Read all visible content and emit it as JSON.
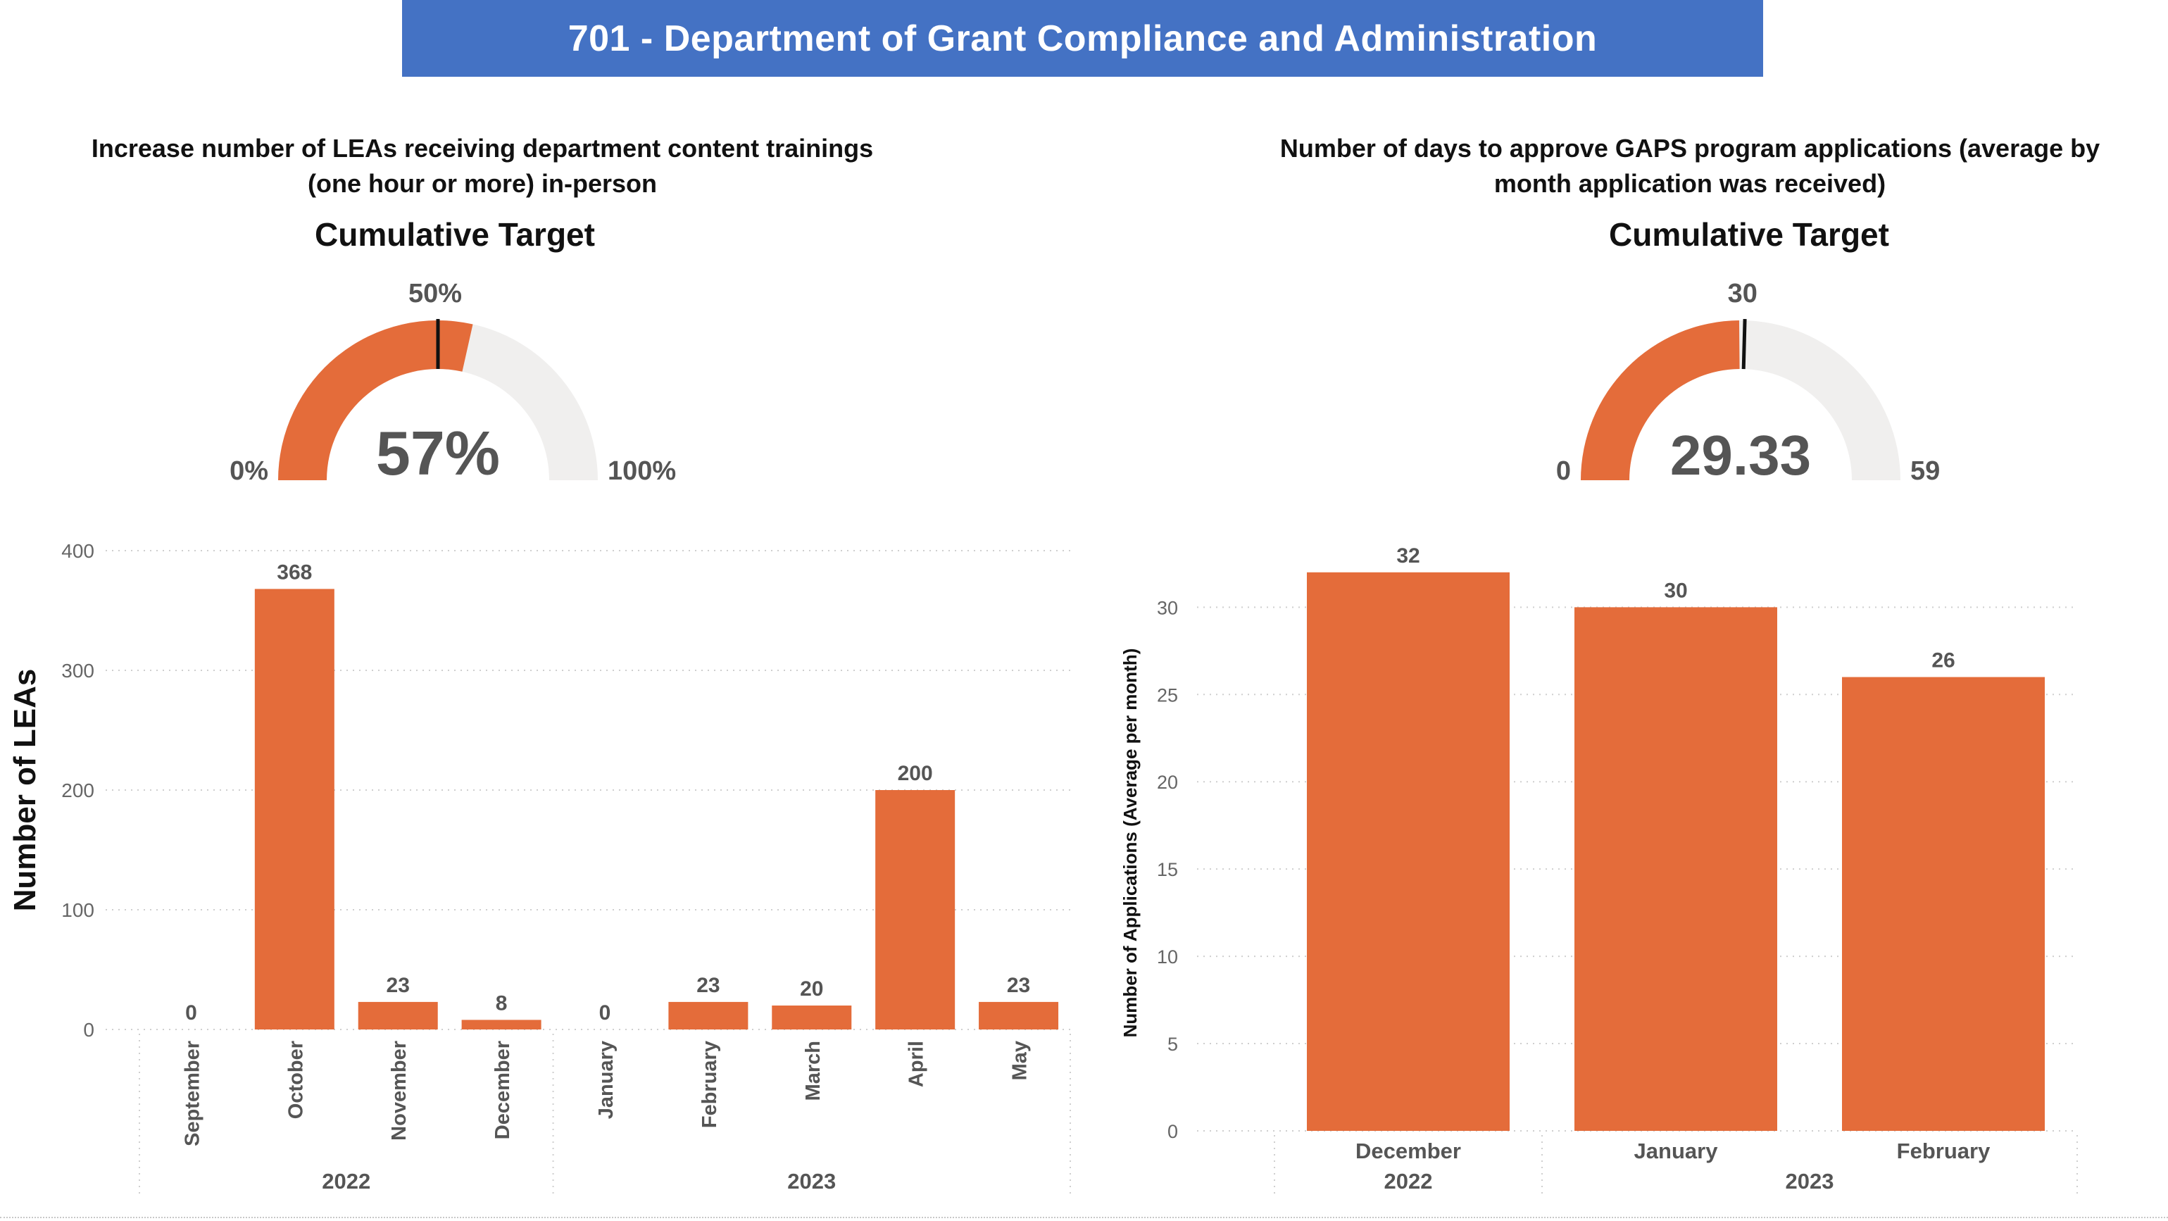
{
  "page": {
    "title": "701 - Department of Grant Compliance and Administration"
  },
  "left": {
    "subtitle": "Increase number of LEAs receiving department content trainings (one hour or more) in-person",
    "gauge_title": "Cumulative Target",
    "gauge": {
      "value_label": "57%",
      "target_label": "50%",
      "min_label": "0%",
      "max_label": "100%",
      "value": 57,
      "target": 50,
      "min": 0,
      "max": 100
    }
  },
  "right": {
    "subtitle": "Number of days to approve GAPS program applications (average by month application was received)",
    "gauge_title": "Cumulative Target",
    "gauge": {
      "value_label": "29.33",
      "target_label": "30",
      "min_label": "0",
      "max_label": "59",
      "value": 29.33,
      "target": 30,
      "min": 0,
      "max": 59
    }
  },
  "colors": {
    "banner": "#4472c4",
    "bar": "#e46c3a",
    "gauge_track": "#f0efee",
    "text_dark": "#555555"
  },
  "chart_data": [
    {
      "type": "bar",
      "ylabel": "Number of LEAs",
      "xlabel": "",
      "ylim": [
        0,
        400
      ],
      "yticks": [
        0,
        100,
        200,
        300,
        400
      ],
      "grid": true,
      "categories": [
        "September",
        "October",
        "November",
        "December",
        "January",
        "February",
        "March",
        "April",
        "May"
      ],
      "years": [
        "2022",
        "2022",
        "2022",
        "2022",
        "2023",
        "2023",
        "2023",
        "2023",
        "2023"
      ],
      "year_groups": [
        {
          "label": "2022",
          "count": 4
        },
        {
          "label": "2023",
          "count": 5
        }
      ],
      "values": [
        0,
        368,
        23,
        8,
        0,
        23,
        20,
        200,
        23
      ],
      "data_labels": true
    },
    {
      "type": "bar",
      "ylabel": "Number of Applications (Average per month)",
      "xlabel": "",
      "ylim": [
        0,
        33
      ],
      "yticks": [
        0,
        5,
        10,
        15,
        20,
        25,
        30
      ],
      "grid": true,
      "categories": [
        "December",
        "January",
        "February"
      ],
      "years": [
        "2022",
        "2023",
        "2023"
      ],
      "year_groups": [
        {
          "label": "2022",
          "count": 1
        },
        {
          "label": "2023",
          "count": 2
        }
      ],
      "values": [
        32,
        30,
        26
      ],
      "data_labels": true
    }
  ]
}
